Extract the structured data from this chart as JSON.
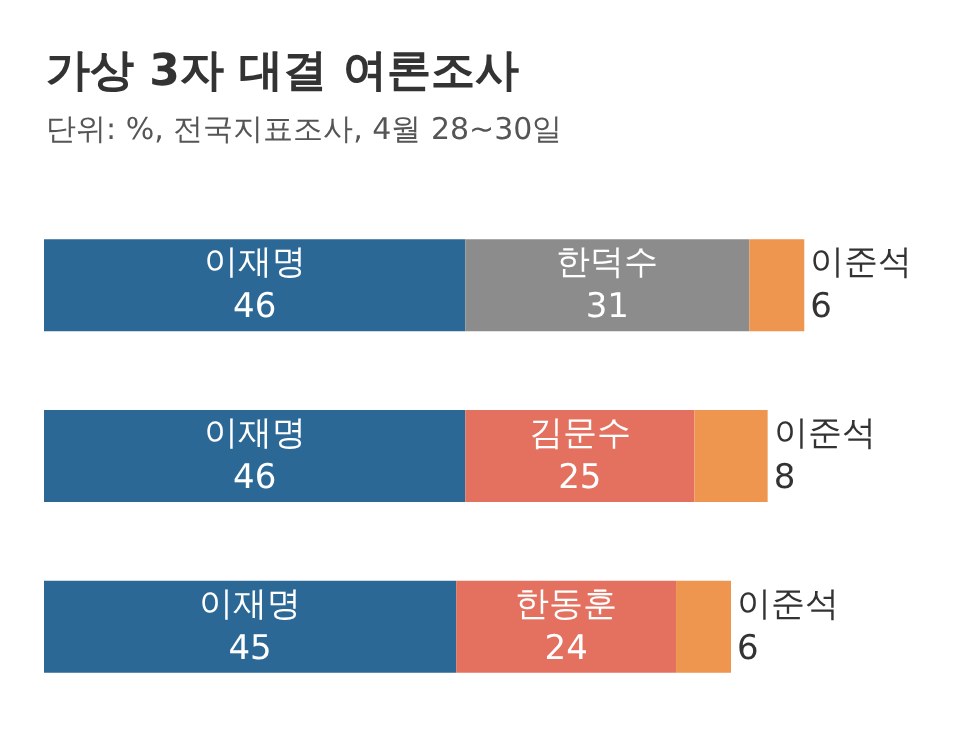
{
  "chart_data": {
    "type": "bar",
    "orientation": "horizontal",
    "stacked": true,
    "title": "가상 3자 대결 여론조사",
    "subtitle": "단위: %, 전국지표조사, 4월 28~30일",
    "categories": [
      null,
      null,
      null
    ],
    "series": [
      {
        "color": "#2c6896",
        "values": [
          46,
          46,
          45
        ],
        "value_labels": [
          "이재명\n46",
          "이재명\n46",
          "이재명\n45"
        ]
      },
      {
        "colors": [
          "#8c8c8c",
          "#e4705f",
          "#e4705f"
        ],
        "values": [
          31,
          25,
          24
        ],
        "value_labels": [
          "한덕수\n31",
          "김문수\n25",
          "한동훈\n24"
        ]
      },
      {
        "color": "#ee9550",
        "values": [
          6,
          8,
          6
        ],
        "value_labels": [
          "이준석\n6",
          "이준석\n8",
          "이준석\n6"
        ]
      }
    ]
  }
}
